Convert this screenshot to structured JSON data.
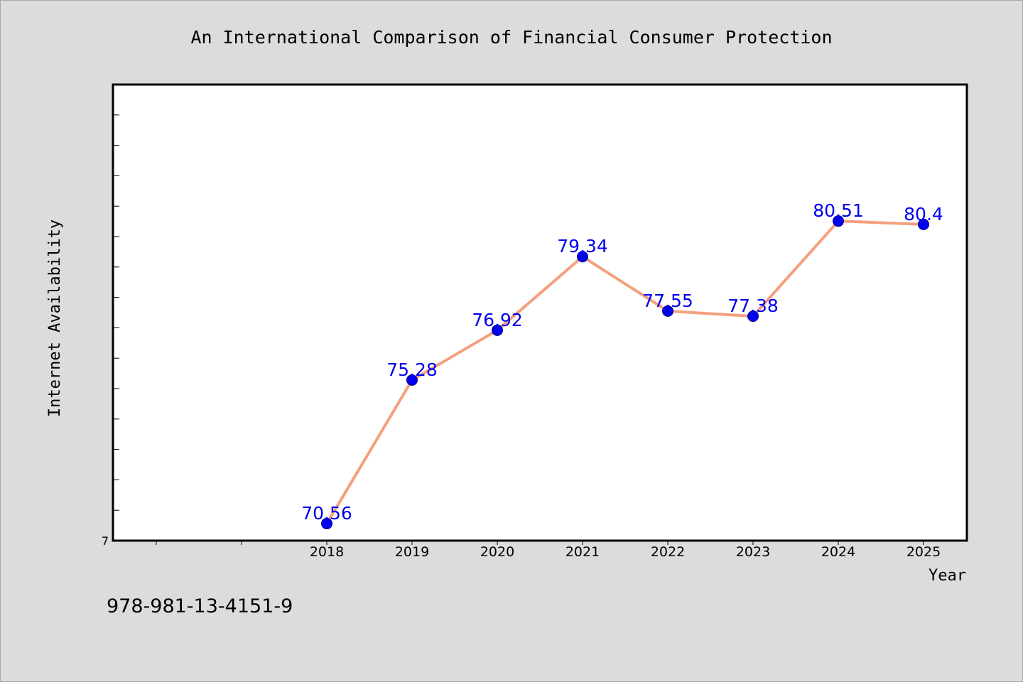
{
  "chart_data": {
    "type": "line",
    "title": "An International Comparison of Financial Consumer Protection",
    "xlabel": "Year",
    "ylabel": "Internet Availability",
    "categories": [
      "2018",
      "2019",
      "2020",
      "2021",
      "2022",
      "2023",
      "2024",
      "2025"
    ],
    "values": [
      70.56,
      75.28,
      76.92,
      79.34,
      77.55,
      77.38,
      80.51,
      80.4
    ],
    "value_labels": [
      "70.56",
      "75.28",
      "76.92",
      "79.34",
      "77.55",
      "77.38",
      "80.51",
      "80.4"
    ],
    "ytick_label": "7",
    "ylim": [
      70,
      85
    ],
    "grid": false,
    "legend": "none",
    "colors": {
      "line": "#f4a07e",
      "marker": "#0000ee",
      "label": "#0000ee",
      "background": "#dcdcdc",
      "plot_bg": "#ffffff"
    }
  },
  "footer": {
    "code": "978-981-13-4151-9"
  }
}
